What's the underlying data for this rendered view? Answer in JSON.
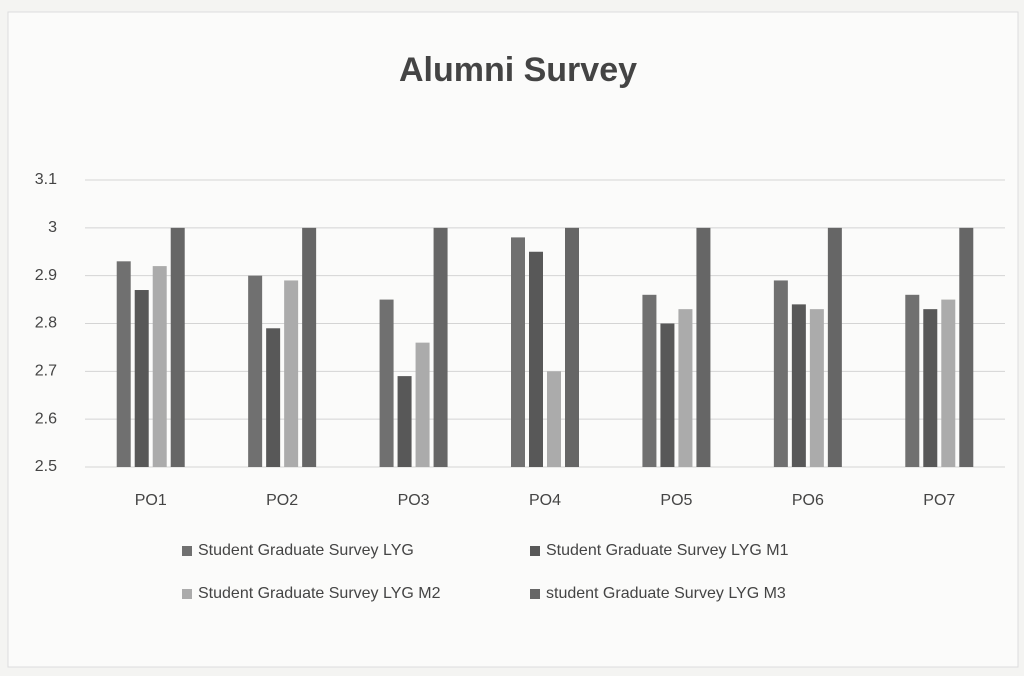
{
  "chart_data": {
    "type": "bar",
    "title": "Alumni Survey",
    "categories": [
      "PO1",
      "PO2",
      "PO3",
      "PO4",
      "PO5",
      "PO6",
      "PO7"
    ],
    "series": [
      {
        "name": "Student Graduate Survey LYG",
        "color": "#707070",
        "values": [
          2.93,
          2.9,
          2.85,
          2.98,
          2.86,
          2.89,
          2.86
        ]
      },
      {
        "name": "Student Graduate Survey LYG M1",
        "color": "#585858",
        "values": [
          2.87,
          2.79,
          2.69,
          2.95,
          2.8,
          2.84,
          2.83
        ]
      },
      {
        "name": "Student Graduate Survey LYG M2",
        "color": "#ababab",
        "values": [
          2.92,
          2.89,
          2.76,
          2.7,
          2.83,
          2.83,
          2.85
        ]
      },
      {
        "name": "student Graduate Survey LYG M3",
        "color": "#666666",
        "values": [
          3.0,
          3.0,
          3.0,
          3.0,
          3.0,
          3.0,
          3.0
        ]
      }
    ],
    "ylim": [
      2.5,
      3.1
    ],
    "yticks": [
      2.5,
      2.6,
      2.7,
      2.8,
      2.9,
      3,
      3.1
    ],
    "grid": true,
    "legend": "bottom"
  }
}
